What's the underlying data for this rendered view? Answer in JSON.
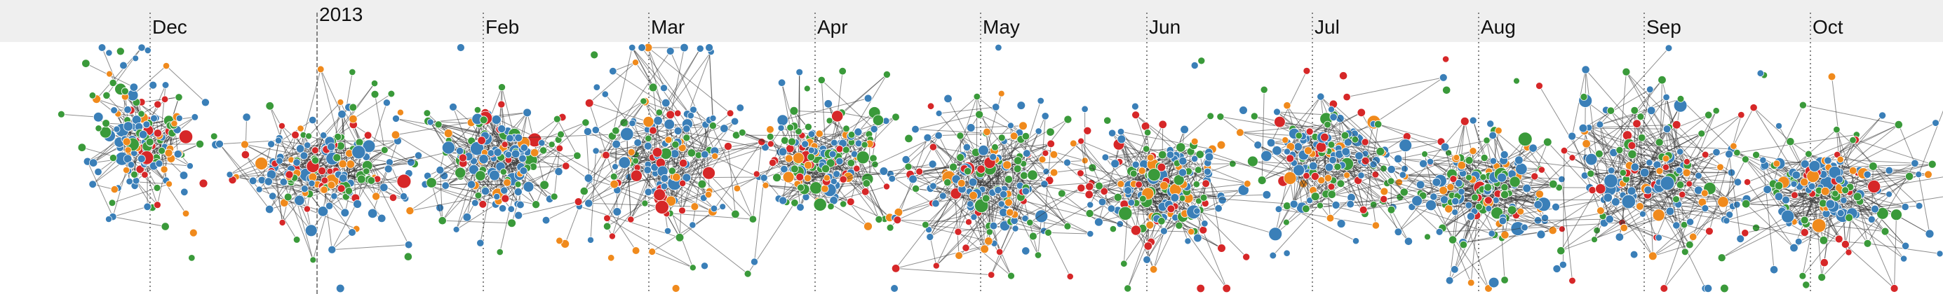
{
  "timeline": {
    "ticks": [
      {
        "label": "Dec",
        "style": "dotted"
      },
      {
        "label": "2013",
        "style": "dashed"
      },
      {
        "label": "Feb",
        "style": "dotted"
      },
      {
        "label": "Mar",
        "style": "dotted"
      },
      {
        "label": "Apr",
        "style": "dotted"
      },
      {
        "label": "May",
        "style": "dotted"
      },
      {
        "label": "Jun",
        "style": "dotted"
      },
      {
        "label": "Jul",
        "style": "dotted"
      },
      {
        "label": "Aug",
        "style": "dotted"
      },
      {
        "label": "Sep",
        "style": "dotted"
      },
      {
        "label": "Oct",
        "style": "dotted"
      }
    ],
    "band_color": "#efefef"
  },
  "graph": {
    "node_colors": [
      "#3a7fb8",
      "#3a7fb8",
      "#3a7fb8",
      "#3a9a3a",
      "#3a9a3a",
      "#f08a1c",
      "#d62728"
    ],
    "link_color": "#333333",
    "cluster_count": 11
  }
}
